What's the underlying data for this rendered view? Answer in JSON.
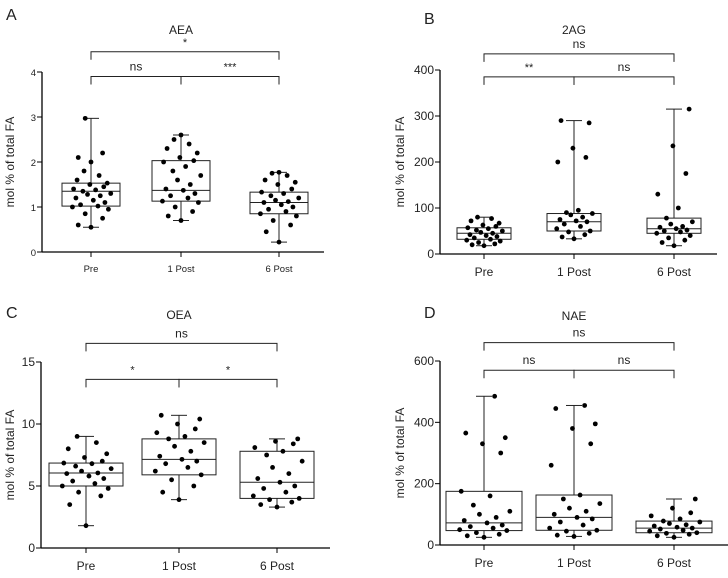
{
  "chart_data": [
    {
      "type": "box",
      "panel_letter": "A",
      "title": "AEA",
      "ylabel": "mol % of total FA",
      "ylim": [
        0,
        4
      ],
      "yticks": [
        0,
        1,
        2,
        3,
        4
      ],
      "categories": [
        "Pre",
        "1 Post",
        "6 Post"
      ],
      "groups": [
        {
          "category": "Pre",
          "min": 0.55,
          "q1": 1.02,
          "median": 1.35,
          "q3": 1.53,
          "max": 2.97,
          "points": [
            0.55,
            0.6,
            0.75,
            0.85,
            0.95,
            1.0,
            1.02,
            1.05,
            1.1,
            1.15,
            1.2,
            1.25,
            1.28,
            1.3,
            1.35,
            1.38,
            1.4,
            1.45,
            1.5,
            1.53,
            1.6,
            1.7,
            1.8,
            2.0,
            2.1,
            2.2,
            2.97
          ]
        },
        {
          "category": "1 Post",
          "min": 0.7,
          "q1": 1.13,
          "median": 1.37,
          "q3": 2.03,
          "max": 2.6,
          "points": [
            0.7,
            0.8,
            0.9,
            1.0,
            1.1,
            1.13,
            1.2,
            1.25,
            1.3,
            1.37,
            1.4,
            1.5,
            1.6,
            1.7,
            1.8,
            1.9,
            2.0,
            2.03,
            2.1,
            2.2,
            2.3,
            2.4,
            2.5,
            2.6
          ]
        },
        {
          "category": "6 Post",
          "min": 0.22,
          "q1": 0.85,
          "median": 1.1,
          "q3": 1.33,
          "max": 1.77,
          "points": [
            0.22,
            0.45,
            0.6,
            0.7,
            0.8,
            0.85,
            0.9,
            0.95,
            1.0,
            1.05,
            1.1,
            1.12,
            1.15,
            1.2,
            1.25,
            1.3,
            1.33,
            1.4,
            1.5,
            1.55,
            1.6,
            1.7,
            1.75,
            1.77
          ]
        }
      ],
      "comparisons": [
        {
          "from": 0,
          "to": 2,
          "label": "*",
          "y": 4.45
        },
        {
          "from": 0,
          "to": 1,
          "label": "ns",
          "y": 3.9
        },
        {
          "from": 1,
          "to": 2,
          "label": "***",
          "y": 3.9
        }
      ]
    },
    {
      "type": "box",
      "panel_letter": "B",
      "title": "2AG",
      "ylabel": "mol % of total FA",
      "ylim": [
        0,
        400
      ],
      "yticks": [
        0,
        100,
        200,
        300,
        400
      ],
      "categories": [
        "Pre",
        "1 Post",
        "6 Post"
      ],
      "groups": [
        {
          "category": "Pre",
          "min": 18,
          "q1": 32,
          "median": 45,
          "q3": 57,
          "max": 80,
          "points": [
            18,
            20,
            22,
            25,
            28,
            30,
            32,
            35,
            38,
            40,
            42,
            45,
            47,
            50,
            52,
            55,
            57,
            60,
            63,
            67,
            72,
            77,
            80
          ]
        },
        {
          "category": "1 Post",
          "min": 33,
          "q1": 50,
          "median": 70,
          "q3": 88,
          "max": 290,
          "points": [
            33,
            37,
            42,
            48,
            50,
            55,
            60,
            65,
            70,
            72,
            75,
            80,
            85,
            88,
            90,
            95,
            200,
            210,
            230,
            285,
            290
          ]
        },
        {
          "category": "6 Post",
          "min": 18,
          "q1": 45,
          "median": 55,
          "q3": 78,
          "max": 315,
          "points": [
            18,
            25,
            30,
            35,
            40,
            45,
            48,
            50,
            52,
            55,
            58,
            60,
            65,
            70,
            78,
            100,
            130,
            175,
            235,
            315
          ]
        }
      ],
      "comparisons": [
        {
          "from": 0,
          "to": 2,
          "label": "ns",
          "y": 435
        },
        {
          "from": 0,
          "to": 1,
          "label": "**",
          "y": 385
        },
        {
          "from": 1,
          "to": 2,
          "label": "ns",
          "y": 385
        }
      ]
    },
    {
      "type": "box",
      "panel_letter": "C",
      "title": "OEA",
      "ylabel": "mol % of total FA",
      "ylim": [
        0,
        15
      ],
      "yticks": [
        0,
        5,
        10,
        15
      ],
      "categories": [
        "Pre",
        "1 Post",
        "6 Post"
      ],
      "groups": [
        {
          "category": "Pre",
          "min": 1.8,
          "q1": 5.0,
          "median": 6.05,
          "q3": 6.85,
          "max": 9.0,
          "points": [
            1.8,
            3.5,
            4.2,
            4.5,
            4.8,
            5.0,
            5.2,
            5.4,
            5.6,
            5.8,
            6.0,
            6.05,
            6.2,
            6.4,
            6.6,
            6.8,
            6.85,
            7.0,
            7.3,
            7.6,
            8.0,
            8.5,
            9.0
          ]
        },
        {
          "category": "1 Post",
          "min": 3.9,
          "q1": 5.9,
          "median": 7.15,
          "q3": 8.8,
          "max": 10.7,
          "points": [
            3.9,
            4.5,
            5.0,
            5.5,
            5.9,
            6.2,
            6.5,
            6.8,
            7.0,
            7.15,
            7.4,
            7.8,
            8.2,
            8.5,
            8.8,
            9.0,
            9.3,
            9.6,
            10.0,
            10.4,
            10.7
          ]
        },
        {
          "category": "6 Post",
          "min": 3.3,
          "q1": 4.0,
          "median": 5.3,
          "q3": 7.8,
          "max": 8.8,
          "points": [
            3.3,
            3.5,
            3.7,
            3.9,
            4.0,
            4.2,
            4.5,
            4.8,
            5.0,
            5.3,
            5.6,
            6.0,
            6.5,
            7.0,
            7.5,
            7.8,
            8.1,
            8.4,
            8.6,
            8.8
          ]
        }
      ],
      "comparisons": [
        {
          "from": 0,
          "to": 2,
          "label": "ns",
          "y": 16.5
        },
        {
          "from": 0,
          "to": 1,
          "label": "*",
          "y": 13.6
        },
        {
          "from": 1,
          "to": 2,
          "label": "*",
          "y": 13.6
        }
      ]
    },
    {
      "type": "box",
      "panel_letter": "D",
      "title": "NAE",
      "ylabel": "mol % of total FA",
      "ylim": [
        0,
        600
      ],
      "yticks": [
        0,
        200,
        400,
        600
      ],
      "categories": [
        "Pre",
        "1 Post",
        "6 Post"
      ],
      "groups": [
        {
          "category": "Pre",
          "min": 25,
          "q1": 47,
          "median": 72,
          "q3": 175,
          "max": 485,
          "points": [
            25,
            30,
            35,
            40,
            47,
            50,
            55,
            60,
            65,
            72,
            80,
            90,
            100,
            110,
            130,
            160,
            175,
            300,
            330,
            350,
            365,
            485
          ]
        },
        {
          "category": "1 Post",
          "min": 28,
          "q1": 48,
          "median": 90,
          "q3": 163,
          "max": 455,
          "points": [
            28,
            32,
            38,
            45,
            48,
            55,
            65,
            75,
            85,
            90,
            100,
            110,
            120,
            135,
            150,
            163,
            260,
            330,
            380,
            395,
            445,
            455
          ]
        },
        {
          "category": "6 Post",
          "min": 25,
          "q1": 40,
          "median": 55,
          "q3": 78,
          "max": 150,
          "points": [
            25,
            30,
            35,
            38,
            40,
            45,
            48,
            52,
            55,
            58,
            62,
            66,
            70,
            75,
            78,
            85,
            95,
            105,
            120,
            150
          ]
        }
      ],
      "comparisons": [
        {
          "from": 0,
          "to": 2,
          "label": "ns",
          "y": 660
        },
        {
          "from": 0,
          "to": 1,
          "label": "ns",
          "y": 570
        },
        {
          "from": 1,
          "to": 2,
          "label": "ns",
          "y": 570
        }
      ]
    }
  ]
}
